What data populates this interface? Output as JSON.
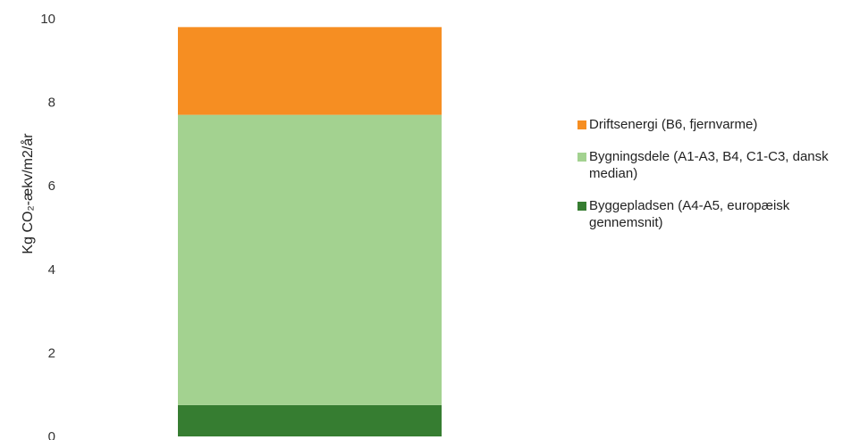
{
  "chart_data": {
    "type": "bar",
    "stacked": true,
    "categories": [
      ""
    ],
    "series": [
      {
        "name": "Byggepladsen (A4-A5, europæisk gennemsnit)",
        "values": [
          0.75
        ],
        "color": "#367D31"
      },
      {
        "name": "Bygningsdele (A1-A3, B4, C1-C3, dansk median)",
        "values": [
          6.95
        ],
        "color": "#A3D290"
      },
      {
        "name": "Driftsenergi (B6, fjernvarme)",
        "values": [
          2.1
        ],
        "color": "#F68E22"
      }
    ],
    "legend_order": [
      2,
      1,
      0
    ],
    "title": "",
    "xlabel": "",
    "ylabel": "Kg CO₂-ækv/m2/år",
    "ylim": [
      0,
      10
    ],
    "yticks": [
      0,
      2,
      4,
      6,
      8,
      10
    ],
    "grid": false,
    "legend_position": "right"
  }
}
